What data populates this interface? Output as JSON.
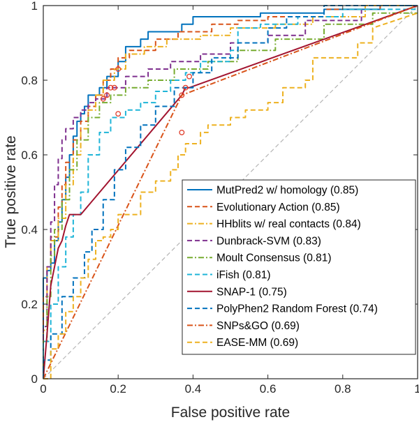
{
  "chart_data": {
    "type": "line",
    "title": "",
    "xlabel": "False positive rate",
    "ylabel": "True positive rate",
    "xlim": [
      0,
      1
    ],
    "ylim": [
      0,
      1
    ],
    "xticks": [
      "0",
      "0.2",
      "0.4",
      "0.6",
      "0.8",
      "1"
    ],
    "yticks": [
      "0",
      "0.2",
      "0.4",
      "0.6",
      "0.8",
      "1"
    ],
    "grid": false,
    "legend_position": "lower-right",
    "diagonal_color": "#b5b5b5",
    "marker_color": "#e03c2a",
    "series": [
      {
        "name": "MutPred2 w/ homology (0.85)",
        "color": "#0072bd",
        "dash": "solid",
        "x": [
          0,
          0,
          0.01,
          0.01,
          0.02,
          0.02,
          0.03,
          0.03,
          0.04,
          0.04,
          0.05,
          0.05,
          0.06,
          0.06,
          0.07,
          0.07,
          0.08,
          0.08,
          0.09,
          0.09,
          0.1,
          0.1,
          0.11,
          0.11,
          0.12,
          0.12,
          0.13,
          0.13,
          0.15,
          0.15,
          0.17,
          0.17,
          0.2,
          0.2,
          0.22,
          0.22,
          0.26,
          0.26,
          0.28,
          0.28,
          0.37,
          0.37,
          0.4,
          0.4,
          0.48,
          0.48,
          0.58,
          0.58,
          0.75,
          0.75,
          0.9,
          0.9,
          1
        ],
        "y": [
          0,
          0.27,
          0.27,
          0.29,
          0.29,
          0.31,
          0.31,
          0.37,
          0.37,
          0.42,
          0.42,
          0.48,
          0.48,
          0.54,
          0.54,
          0.6,
          0.6,
          0.65,
          0.65,
          0.69,
          0.69,
          0.71,
          0.71,
          0.73,
          0.73,
          0.76,
          0.76,
          0.76,
          0.76,
          0.78,
          0.78,
          0.81,
          0.81,
          0.85,
          0.85,
          0.89,
          0.89,
          0.91,
          0.91,
          0.93,
          0.93,
          0.95,
          0.95,
          0.97,
          0.97,
          0.97,
          0.97,
          0.98,
          0.98,
          0.99,
          0.99,
          1,
          1
        ]
      },
      {
        "name": "Evolutionary Action (0.85)",
        "color": "#d95319",
        "dash": "dash",
        "x": [
          0,
          0,
          0.01,
          0.01,
          0.02,
          0.02,
          0.04,
          0.04,
          0.05,
          0.05,
          0.06,
          0.06,
          0.08,
          0.08,
          0.1,
          0.1,
          0.12,
          0.12,
          0.14,
          0.14,
          0.16,
          0.16,
          0.18,
          0.18,
          0.2,
          0.2,
          0.23,
          0.23,
          0.3,
          0.3,
          0.36,
          0.36,
          0.45,
          0.45,
          0.52,
          0.52,
          0.6,
          0.6,
          0.75,
          0.75,
          0.9,
          0.9,
          1
        ],
        "y": [
          0,
          0.22,
          0.22,
          0.3,
          0.3,
          0.38,
          0.38,
          0.46,
          0.46,
          0.52,
          0.52,
          0.58,
          0.58,
          0.64,
          0.64,
          0.69,
          0.69,
          0.73,
          0.73,
          0.76,
          0.76,
          0.8,
          0.8,
          0.83,
          0.83,
          0.86,
          0.86,
          0.88,
          0.88,
          0.91,
          0.91,
          0.93,
          0.93,
          0.95,
          0.95,
          0.96,
          0.96,
          0.97,
          0.97,
          0.99,
          0.99,
          1,
          1
        ]
      },
      {
        "name": "HHblits w/ real contacts (0.84)",
        "color": "#edb120",
        "dash": "dashdot",
        "x": [
          0,
          0,
          0.01,
          0.01,
          0.02,
          0.02,
          0.04,
          0.04,
          0.06,
          0.06,
          0.08,
          0.08,
          0.1,
          0.1,
          0.12,
          0.12,
          0.14,
          0.14,
          0.16,
          0.16,
          0.19,
          0.19,
          0.22,
          0.22,
          0.27,
          0.27,
          0.33,
          0.33,
          0.42,
          0.42,
          0.5,
          0.5,
          0.62,
          0.62,
          0.72,
          0.72,
          0.86,
          0.86,
          1
        ],
        "y": [
          0,
          0.13,
          0.13,
          0.3,
          0.3,
          0.37,
          0.37,
          0.43,
          0.43,
          0.52,
          0.52,
          0.6,
          0.6,
          0.67,
          0.67,
          0.72,
          0.72,
          0.76,
          0.76,
          0.8,
          0.8,
          0.83,
          0.83,
          0.87,
          0.87,
          0.89,
          0.89,
          0.91,
          0.91,
          0.92,
          0.92,
          0.94,
          0.94,
          0.95,
          0.95,
          0.97,
          0.97,
          1,
          1
        ]
      },
      {
        "name": "Dunbrack-SVM (0.83)",
        "color": "#7e2f8e",
        "dash": "dash",
        "x": [
          0,
          0,
          0.01,
          0.01,
          0.02,
          0.02,
          0.03,
          0.03,
          0.04,
          0.04,
          0.05,
          0.05,
          0.06,
          0.06,
          0.08,
          0.08,
          0.1,
          0.1,
          0.12,
          0.12,
          0.14,
          0.14,
          0.17,
          0.17,
          0.22,
          0.22,
          0.28,
          0.28,
          0.34,
          0.34,
          0.42,
          0.42,
          0.5,
          0.5,
          0.6,
          0.6,
          0.7,
          0.7,
          0.85,
          0.85,
          1
        ],
        "y": [
          0,
          0.14,
          0.14,
          0.3,
          0.3,
          0.42,
          0.42,
          0.52,
          0.52,
          0.59,
          0.59,
          0.64,
          0.64,
          0.67,
          0.67,
          0.7,
          0.7,
          0.72,
          0.72,
          0.74,
          0.74,
          0.75,
          0.75,
          0.78,
          0.78,
          0.81,
          0.81,
          0.83,
          0.83,
          0.85,
          0.85,
          0.87,
          0.87,
          0.9,
          0.9,
          0.92,
          0.92,
          0.96,
          0.96,
          1,
          1
        ]
      },
      {
        "name": "Moult Consensus (0.81)",
        "color": "#77ac30",
        "dash": "dashdot",
        "x": [
          0,
          0,
          0.01,
          0.01,
          0.02,
          0.02,
          0.03,
          0.03,
          0.05,
          0.05,
          0.07,
          0.07,
          0.09,
          0.09,
          0.12,
          0.12,
          0.15,
          0.15,
          0.18,
          0.18,
          0.22,
          0.22,
          0.28,
          0.28,
          0.35,
          0.35,
          0.44,
          0.44,
          0.52,
          0.52,
          0.62,
          0.62,
          0.75,
          0.75,
          0.88,
          0.88,
          1
        ],
        "y": [
          0,
          0.1,
          0.1,
          0.22,
          0.22,
          0.33,
          0.33,
          0.4,
          0.4,
          0.48,
          0.48,
          0.56,
          0.56,
          0.64,
          0.64,
          0.7,
          0.7,
          0.74,
          0.74,
          0.76,
          0.76,
          0.78,
          0.78,
          0.8,
          0.8,
          0.83,
          0.83,
          0.85,
          0.85,
          0.88,
          0.88,
          0.91,
          0.91,
          0.95,
          0.95,
          0.98,
          0.98
        ]
      },
      {
        "name": "iFish (0.81)",
        "color": "#1fb5d8",
        "dash": "dash",
        "x": [
          0,
          0,
          0.02,
          0.02,
          0.04,
          0.04,
          0.06,
          0.06,
          0.08,
          0.08,
          0.1,
          0.1,
          0.12,
          0.12,
          0.15,
          0.15,
          0.18,
          0.18,
          0.22,
          0.22,
          0.26,
          0.26,
          0.3,
          0.3,
          0.34,
          0.34,
          0.38,
          0.38,
          0.42,
          0.42,
          0.5,
          0.5,
          0.52,
          0.52,
          0.58,
          0.58,
          0.68,
          0.68,
          0.8,
          0.8,
          1
        ],
        "y": [
          0,
          0.1,
          0.1,
          0.2,
          0.2,
          0.3,
          0.3,
          0.38,
          0.38,
          0.44,
          0.44,
          0.5,
          0.5,
          0.6,
          0.6,
          0.66,
          0.66,
          0.7,
          0.7,
          0.72,
          0.72,
          0.74,
          0.74,
          0.77,
          0.77,
          0.8,
          0.8,
          0.82,
          0.82,
          0.85,
          0.85,
          0.88,
          0.88,
          0.94,
          0.94,
          0.95,
          0.95,
          0.97,
          0.97,
          0.99,
          0.99
        ]
      },
      {
        "name": "SNAP-1 (0.75)",
        "color": "#a2142f",
        "dash": "solid",
        "x": [
          0,
          0.01,
          0.02,
          0.03,
          0.04,
          0.05,
          0.06,
          0.07,
          0.1,
          0.37,
          0.38,
          0.39,
          1
        ],
        "y": [
          0,
          0.12,
          0.25,
          0.3,
          0.35,
          0.37,
          0.41,
          0.44,
          0.44,
          0.76,
          0.78,
          0.78,
          1
        ]
      },
      {
        "name": "PolyPhen2 Random Forest (0.74)",
        "color": "#0072bd",
        "dash": "dash",
        "x": [
          0,
          0,
          0.02,
          0.02,
          0.05,
          0.05,
          0.08,
          0.08,
          0.11,
          0.11,
          0.13,
          0.13,
          0.16,
          0.16,
          0.19,
          0.19,
          0.22,
          0.22,
          0.26,
          0.26,
          0.3,
          0.3,
          0.35,
          0.35,
          0.4,
          0.4,
          0.45,
          0.45,
          0.52,
          0.52,
          0.6,
          0.6,
          0.65,
          0.65,
          0.75,
          0.75,
          0.82,
          0.82,
          1
        ],
        "y": [
          0,
          0.05,
          0.05,
          0.12,
          0.12,
          0.22,
          0.22,
          0.27,
          0.27,
          0.34,
          0.34,
          0.4,
          0.4,
          0.48,
          0.48,
          0.56,
          0.56,
          0.62,
          0.62,
          0.68,
          0.68,
          0.73,
          0.73,
          0.78,
          0.78,
          0.82,
          0.82,
          0.86,
          0.86,
          0.9,
          0.9,
          0.94,
          0.94,
          0.97,
          0.97,
          1,
          1,
          1,
          1
        ]
      },
      {
        "name": "SNPs&GO (0.69)",
        "color": "#d95319",
        "dash": "dashdot",
        "x": [
          0,
          0.37,
          1
        ],
        "y": [
          0,
          0.76,
          1
        ]
      },
      {
        "name": "EASE-MM (0.69)",
        "color": "#edb120",
        "dash": "dash",
        "x": [
          0,
          0.02,
          0.02,
          0.04,
          0.04,
          0.06,
          0.06,
          0.08,
          0.08,
          0.1,
          0.1,
          0.12,
          0.12,
          0.14,
          0.14,
          0.16,
          0.16,
          0.18,
          0.18,
          0.2,
          0.2,
          0.26,
          0.26,
          0.3,
          0.3,
          0.34,
          0.34,
          0.36,
          0.36,
          0.38,
          0.38,
          0.42,
          0.42,
          0.44,
          0.44,
          0.5,
          0.5,
          0.54,
          0.54,
          0.6,
          0.6,
          0.64,
          0.64,
          0.7,
          0.7,
          0.72,
          0.72,
          0.84,
          0.84,
          0.88,
          0.88,
          1
        ],
        "y": [
          0,
          0,
          0.08,
          0.08,
          0.12,
          0.12,
          0.18,
          0.18,
          0.22,
          0.22,
          0.27,
          0.27,
          0.32,
          0.32,
          0.37,
          0.37,
          0.38,
          0.38,
          0.4,
          0.4,
          0.44,
          0.44,
          0.5,
          0.5,
          0.53,
          0.53,
          0.56,
          0.56,
          0.6,
          0.6,
          0.63,
          0.63,
          0.66,
          0.66,
          0.68,
          0.68,
          0.7,
          0.7,
          0.72,
          0.72,
          0.74,
          0.74,
          0.78,
          0.78,
          0.8,
          0.8,
          0.86,
          0.86,
          0.9,
          0.9,
          0.94,
          0.98
        ]
      }
    ],
    "markers": [
      {
        "x": 0.2,
        "y": 0.83
      },
      {
        "x": 0.18,
        "y": 0.78
      },
      {
        "x": 0.19,
        "y": 0.78
      },
      {
        "x": 0.17,
        "y": 0.76
      },
      {
        "x": 0.16,
        "y": 0.75
      },
      {
        "x": 0.2,
        "y": 0.71
      },
      {
        "x": 0.39,
        "y": 0.81
      },
      {
        "x": 0.38,
        "y": 0.78
      },
      {
        "x": 0.37,
        "y": 0.76
      },
      {
        "x": 0.37,
        "y": 0.66
      }
    ]
  }
}
